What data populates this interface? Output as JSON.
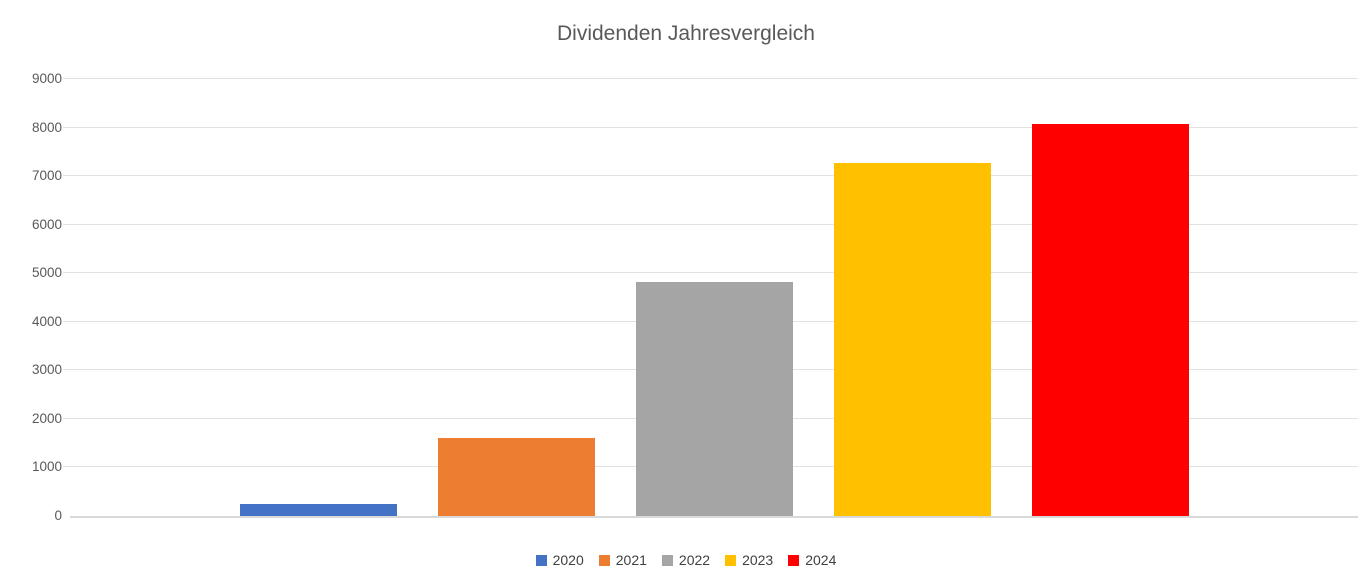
{
  "chart_data": {
    "type": "bar",
    "title": "Dividenden Jahresvergleich",
    "categories": [
      "2020",
      "2021",
      "2022",
      "2023",
      "2024"
    ],
    "values": [
      250,
      1600,
      4820,
      7270,
      8080
    ],
    "series_colors": [
      "#4472C4",
      "#ED7D31",
      "#A5A5A5",
      "#FFC000",
      "#FF0000"
    ],
    "xlabel": "",
    "ylabel": "",
    "ylim": [
      0,
      9000
    ],
    "yticks": [
      0,
      1000,
      2000,
      3000,
      4000,
      5000,
      6000,
      7000,
      8000,
      9000
    ],
    "grid": true,
    "legend_position": "bottom",
    "legend": [
      "2020",
      "2021",
      "2022",
      "2023",
      "2024"
    ]
  },
  "colors": {
    "background": "#FFFFFF",
    "title_text": "#595959",
    "axis_text": "#595959",
    "legend_text": "#404040",
    "gridline": "#E2E2E2",
    "axis_line": "#D9D9D9"
  }
}
